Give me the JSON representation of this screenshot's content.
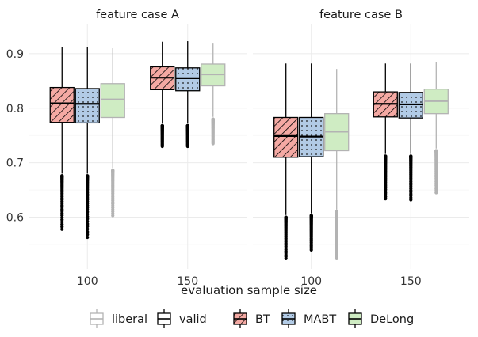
{
  "chart_data": {
    "type": "boxplot",
    "xlabel": "evaluation sample size",
    "ylabel": "",
    "ylim": [
      0.505,
      0.955
    ],
    "y_ticks": [
      "0.6",
      "0.7",
      "0.8",
      "0.9"
    ],
    "y_tick_values": [
      0.6,
      0.7,
      0.8,
      0.9
    ],
    "categories": [
      "100",
      "150"
    ],
    "panels": [
      {
        "title": "feature case A",
        "groups": [
          {
            "x": "100",
            "boxes": [
              {
                "method": "BT",
                "type": "valid",
                "q1": 0.774,
                "median": 0.809,
                "q3": 0.838,
                "whisker_low": 0.68,
                "whisker_high": 0.912,
                "outlier_min": 0.578
              },
              {
                "method": "MABT",
                "type": "valid",
                "q1": 0.773,
                "median": 0.808,
                "q3": 0.836,
                "whisker_low": 0.68,
                "whisker_high": 0.912,
                "outlier_min": 0.563
              },
              {
                "method": "DeLong",
                "type": "liberal",
                "q1": 0.783,
                "median": 0.816,
                "q3": 0.845,
                "whisker_low": 0.69,
                "whisker_high": 0.91,
                "outlier_min": 0.603
              }
            ]
          },
          {
            "x": "150",
            "boxes": [
              {
                "method": "BT",
                "type": "valid",
                "q1": 0.834,
                "median": 0.856,
                "q3": 0.876,
                "whisker_low": 0.772,
                "whisker_high": 0.922,
                "outlier_min": 0.73
              },
              {
                "method": "MABT",
                "type": "valid",
                "q1": 0.832,
                "median": 0.855,
                "q3": 0.874,
                "whisker_low": 0.772,
                "whisker_high": 0.923,
                "outlier_min": 0.73
              },
              {
                "method": "DeLong",
                "type": "liberal",
                "q1": 0.841,
                "median": 0.862,
                "q3": 0.881,
                "whisker_low": 0.784,
                "whisker_high": 0.92,
                "outlier_min": 0.735
              }
            ]
          }
        ]
      },
      {
        "title": "feature case B",
        "groups": [
          {
            "x": "100",
            "boxes": [
              {
                "method": "BT",
                "type": "valid",
                "q1": 0.71,
                "median": 0.749,
                "q3": 0.783,
                "whisker_low": 0.604,
                "whisker_high": 0.882,
                "outlier_min": 0.524
              },
              {
                "method": "MABT",
                "type": "valid",
                "q1": 0.711,
                "median": 0.748,
                "q3": 0.783,
                "whisker_low": 0.607,
                "whisker_high": 0.882,
                "outlier_min": 0.54
              },
              {
                "method": "DeLong",
                "type": "liberal",
                "q1": 0.722,
                "median": 0.757,
                "q3": 0.79,
                "whisker_low": 0.614,
                "whisker_high": 0.872,
                "outlier_min": 0.524
              }
            ]
          },
          {
            "x": "150",
            "boxes": [
              {
                "method": "BT",
                "type": "valid",
                "q1": 0.784,
                "median": 0.808,
                "q3": 0.83,
                "whisker_low": 0.716,
                "whisker_high": 0.882,
                "outlier_min": 0.634
              },
              {
                "method": "MABT",
                "type": "valid",
                "q1": 0.782,
                "median": 0.807,
                "q3": 0.829,
                "whisker_low": 0.716,
                "whisker_high": 0.882,
                "outlier_min": 0.632
              },
              {
                "method": "DeLong",
                "type": "liberal",
                "q1": 0.79,
                "median": 0.813,
                "q3": 0.835,
                "whisker_low": 0.726,
                "whisker_high": 0.885,
                "outlier_min": 0.645
              }
            ]
          }
        ]
      }
    ],
    "legend": {
      "placement": "bottom",
      "type_entries": [
        "liberal",
        "valid"
      ],
      "method_entries": [
        "BT",
        "MABT",
        "DeLong"
      ]
    },
    "colors": {
      "BT": "#f4a9a3",
      "MABT": "#b2cbe6",
      "DeLong": "#cfecc3",
      "valid": "#000000",
      "liberal": "#b3b3b3",
      "grid": "#ebebeb"
    },
    "patterns": {
      "BT": "stripes",
      "MABT": "dots",
      "DeLong": "none"
    },
    "grid": true
  }
}
